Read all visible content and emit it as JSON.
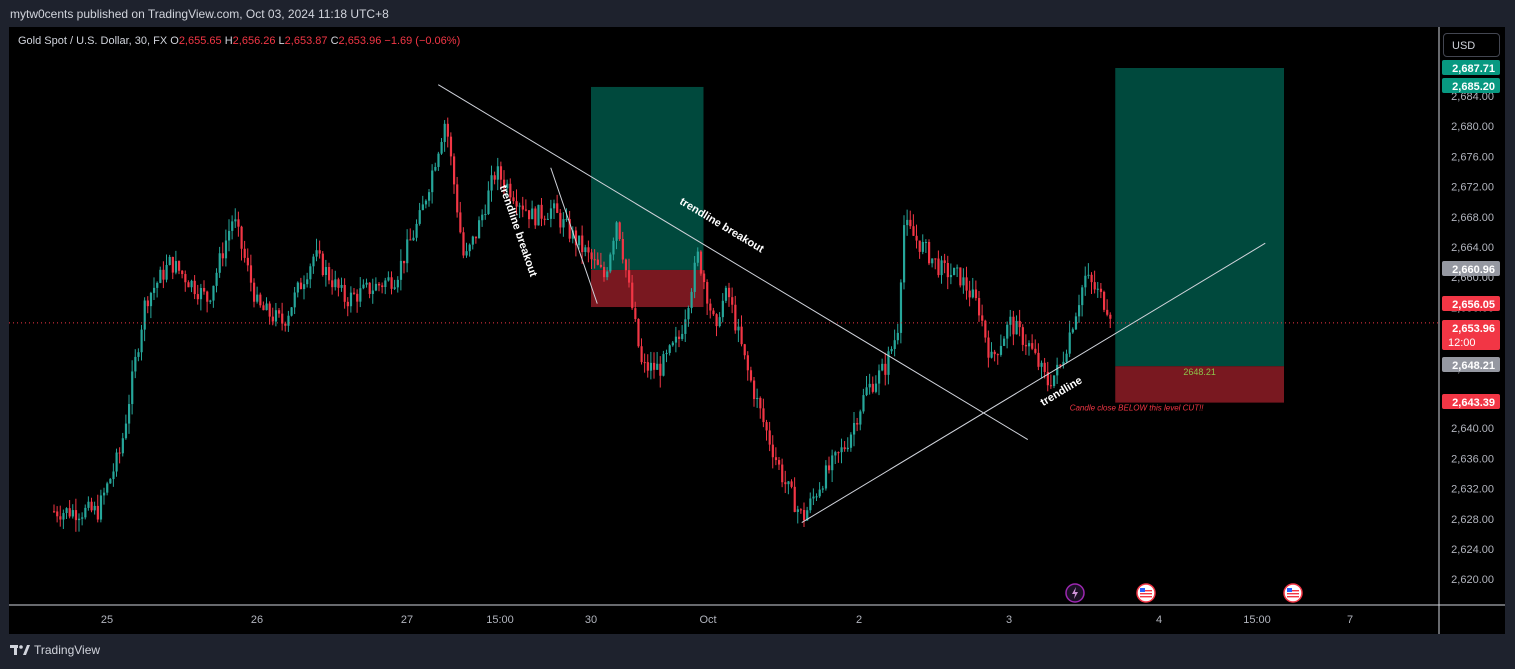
{
  "header": {
    "published_by": "mytw0cents published on TradingView.com, Oct 03, 2024 11:18 UTC+8"
  },
  "footer": {
    "brand": "TradingView"
  },
  "legend": {
    "symbol": "Gold Spot / U.S. Dollar, 30, FX",
    "o_label": "O",
    "o_value": "2,655.65",
    "h_label": "H",
    "h_value": "2,656.26",
    "l_label": "L",
    "l_value": "2,653.87",
    "c_label": "C",
    "c_value": "2,653.96",
    "change": "−1.69 (−0.06%)"
  },
  "currency_button": "USD",
  "colors": {
    "up": "#26a69a",
    "down": "#f23645",
    "target_zone": "#004d40",
    "stop_zone": "#801922",
    "background": "#000000"
  },
  "chart_data": {
    "type": "candlestick",
    "symbol": "XAUUSD",
    "interval": "30",
    "ylim": [
      2616.5,
      2692
    ],
    "y_ticks": [
      2620,
      2624,
      2628,
      2632,
      2636,
      2640,
      2644,
      2648,
      2652,
      2656,
      2660,
      2664,
      2668,
      2672,
      2676,
      2680,
      2684
    ],
    "x_ticks": [
      "25",
      "26",
      "27",
      "15:00",
      "30",
      "Oct",
      "2",
      "3",
      "4",
      "15:00",
      "7"
    ],
    "grid": false,
    "close_path": [
      [
        "Sep 24 16:00",
        2629
      ],
      [
        "Sep 24 23:00",
        2629
      ],
      [
        "Sep 25 02:00",
        2637
      ],
      [
        "Sep 25 06:00",
        2657
      ],
      [
        "Sep 25 10:00",
        2662
      ],
      [
        "Sep 25 16:00",
        2657
      ],
      [
        "Sep 25 20:00",
        2668
      ],
      [
        "Sep 26 00:00",
        2656
      ],
      [
        "Sep 26 04:00",
        2654
      ],
      [
        "Sep 26 09:00",
        2663
      ],
      [
        "Sep 26 14:00",
        2657
      ],
      [
        "Sep 26 22:00",
        2660
      ],
      [
        "Sep 27 02:00",
        2668
      ],
      [
        "Sep 27 06:00",
        2681
      ],
      [
        "Sep 27 09:00",
        2662
      ],
      [
        "Sep 27 11:00",
        2666
      ],
      [
        "Sep 27 14:00",
        2674
      ],
      [
        "Sep 27 17:00",
        2671
      ],
      [
        "Sep 27 20:00",
        2668
      ],
      [
        "Sep 27 23:00",
        2669
      ],
      [
        "Sep 30 02:00",
        2660
      ],
      [
        "Sep 30 04:00",
        2668
      ],
      [
        "Sep 30 06:00",
        2658
      ],
      [
        "Sep 30 08:00",
        2648
      ],
      [
        "Sep 30 11:00",
        2648
      ],
      [
        "Sep 30 14:00",
        2652
      ],
      [
        "Sep 30 17:00",
        2663
      ],
      [
        "Sep 30 20:00",
        2652
      ],
      [
        "Oct 01 00:00",
        2653
      ],
      [
        "Oct 01 03:00",
        2658
      ],
      [
        "Oct 01 06:00",
        2648
      ],
      [
        "Oct 01 09:00",
        2640
      ],
      [
        "Oct 01 12:00",
        2633
      ],
      [
        "Oct 01 15:00",
        2628
      ],
      [
        "Oct 01 18:00",
        2633
      ],
      [
        "Oct 01 22:00",
        2638
      ],
      [
        "Oct 02 01:00",
        2645
      ],
      [
        "Oct 02 04:00",
        2648
      ],
      [
        "Oct 02 06:00",
        2653
      ],
      [
        "Oct 02 07:00",
        2667
      ],
      [
        "Oct 02 10:00",
        2664
      ],
      [
        "Oct 02 13:00",
        2661
      ],
      [
        "Oct 02 16:00",
        2660
      ],
      [
        "Oct 02 19:00",
        2656
      ],
      [
        "Oct 02 21:00",
        2649
      ],
      [
        "Oct 03 00:00",
        2654
      ],
      [
        "Oct 03 03:00",
        2651
      ],
      [
        "Oct 03 06:00",
        2646
      ],
      [
        "Oct 03 08:00",
        2648
      ],
      [
        "Oct 03 10:00",
        2654
      ],
      [
        "Oct 03 12:00",
        2660
      ],
      [
        "Oct 03 14:00",
        2658
      ],
      [
        "Oct 03 16:00",
        2655.65
      ],
      [
        "Oct 03 16:30",
        2653.96
      ]
    ],
    "price_badges": [
      {
        "label": "2,687.71",
        "value": 2687.71,
        "color": "#089981"
      },
      {
        "label": "2,685.20",
        "value": 2685.2,
        "color": "#089981"
      },
      {
        "label": "2,660.96",
        "value": 2660.96,
        "color": "#9598a1"
      },
      {
        "label": "2,656.05",
        "value": 2656.05,
        "color": "#f23645"
      },
      {
        "label": "2,653.96",
        "value": 2653.96,
        "color": "#f23645",
        "countdown": "12:00"
      },
      {
        "label": "2,648.21",
        "value": 2648.21,
        "color": "#9598a1"
      },
      {
        "label": "2,643.39",
        "value": 2643.39,
        "color": "#f23645"
      }
    ],
    "trendlines": [
      {
        "from": [
          "Sep 27 05:00",
          2685.5
        ],
        "to": [
          "Oct 03 03:00",
          2638.5
        ],
        "label": "trendline breakout"
      },
      {
        "from": [
          "Sep 27 23:00",
          2674.5
        ],
        "to": [
          "Sep 30 01:00",
          2656.5
        ],
        "label": "trendline breakout"
      },
      {
        "from": [
          "Oct 01 15:00",
          2627.5
        ],
        "to": [
          "Oct 04 17:00",
          2664.5
        ],
        "label": "trendline"
      }
    ],
    "positions": [
      {
        "from": "Sep 30 00:00",
        "to": "Sep 30 18:00",
        "target": 2685.2,
        "entry": 2660.96,
        "stop": 2656.05
      },
      {
        "from": "Oct 03 17:00",
        "to": "Oct 04 20:00",
        "target": 2687.71,
        "entry": 2648.21,
        "stop": 2643.39,
        "entry_label": "2648.21",
        "stop_note": "Candle close BELOW this level CUT!!"
      }
    ],
    "events": [
      {
        "time": "Oct 03 17:00",
        "icon": "lightning-icon"
      },
      {
        "time": "Oct 03 23:00",
        "icon": "us-flag-icon"
      },
      {
        "time": "Oct 04 19:00",
        "icon": "us-flag-icon"
      }
    ]
  }
}
